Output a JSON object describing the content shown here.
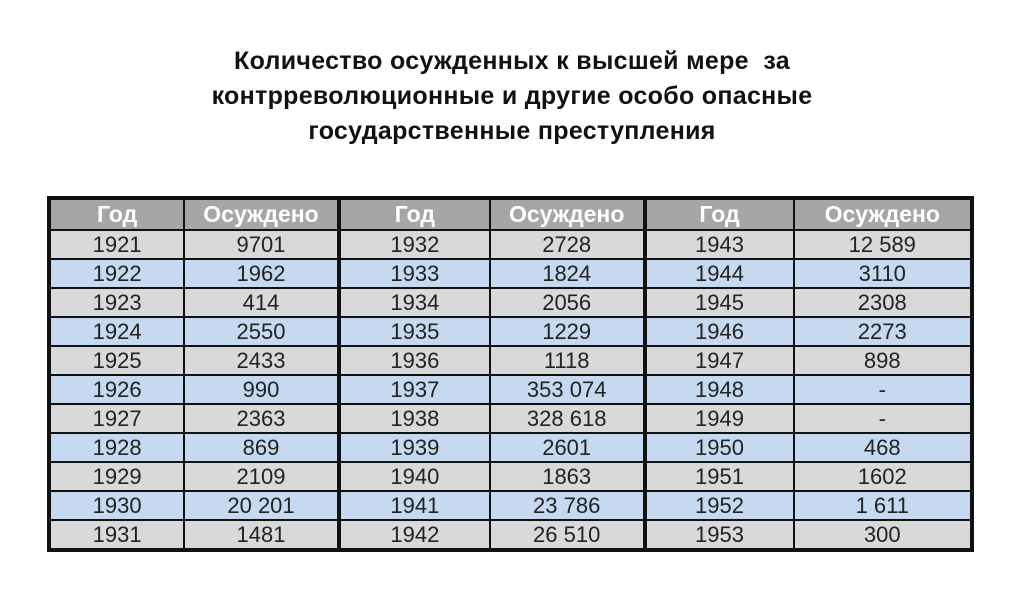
{
  "title": {
    "lines": [
      "Количество осужденных к высшей мере  за",
      "контрреволюционные и другие особо опасные",
      "государственные преступления"
    ]
  },
  "colors": {
    "header_bg": "#a6a6a6",
    "row_gray": "#d9d9d9",
    "row_blue": "#c6d9f1"
  },
  "table": {
    "headers": [
      "Год",
      "Осуждено",
      "Год",
      "Осуждено",
      "Год",
      "Осуждено"
    ],
    "rows": [
      [
        "1921",
        "9701",
        "1932",
        "2728",
        "1943",
        "12 589"
      ],
      [
        "1922",
        "1962",
        "1933",
        "1824",
        "1944",
        "3110"
      ],
      [
        "1923",
        "414",
        "1934",
        "2056",
        "1945",
        "2308"
      ],
      [
        "1924",
        "2550",
        "1935",
        "1229",
        "1946",
        "2273"
      ],
      [
        "1925",
        "2433",
        "1936",
        "1118",
        "1947",
        "898"
      ],
      [
        "1926",
        "990",
        "1937",
        "353 074",
        "1948",
        "-"
      ],
      [
        "1927",
        "2363",
        "1938",
        "328 618",
        "1949",
        "-"
      ],
      [
        "1928",
        "869",
        "1939",
        "2601",
        "1950",
        "468"
      ],
      [
        "1929",
        "2109",
        "1940",
        "1863",
        "1951",
        "1602"
      ],
      [
        "1930",
        "20 201",
        "1941",
        "23 786",
        "1952",
        "1 611"
      ],
      [
        "1931",
        "1481",
        "1942",
        "26 510",
        "1953",
        "300"
      ]
    ]
  }
}
